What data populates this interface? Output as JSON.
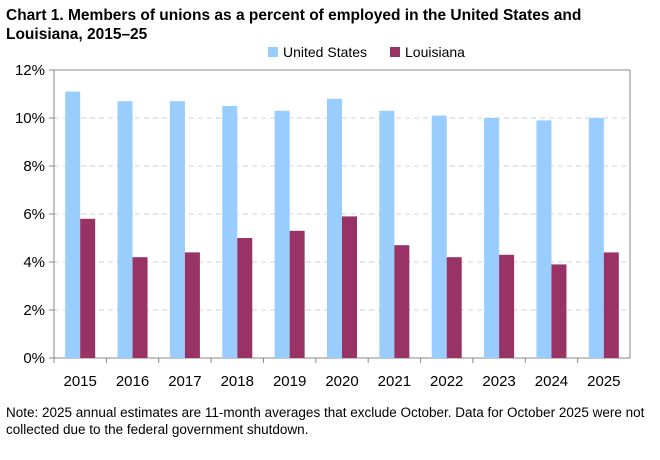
{
  "title": "Chart 1. Members of unions as a percent of employed  in the United States and Louisiana, 2015–25",
  "note": "Note: 2025 annual estimates are 11-month averages that exclude October. Data for October 2025 were not collected due to the federal government shutdown.",
  "chart_data": {
    "type": "bar",
    "title": "Chart 1. Members of unions as a percent of employed  in the United States and Louisiana, 2015–25",
    "categories": [
      "2015",
      "2016",
      "2017",
      "2018",
      "2019",
      "2020",
      "2021",
      "2022",
      "2023",
      "2024",
      "2025"
    ],
    "series": [
      {
        "name": "United States",
        "color": "#99ccff",
        "values": [
          11.1,
          10.7,
          10.7,
          10.5,
          10.3,
          10.8,
          10.3,
          10.1,
          10.0,
          9.9,
          10.0
        ]
      },
      {
        "name": "Louisiana",
        "color": "#993366",
        "values": [
          5.8,
          4.2,
          4.4,
          5.0,
          5.3,
          5.9,
          4.7,
          4.2,
          4.3,
          3.9,
          4.4
        ]
      }
    ],
    "ylim": [
      0,
      12
    ],
    "yticks": [
      "0%",
      "2%",
      "4%",
      "6%",
      "8%",
      "10%",
      "12%"
    ],
    "grid": true,
    "legend": "top-center"
  }
}
